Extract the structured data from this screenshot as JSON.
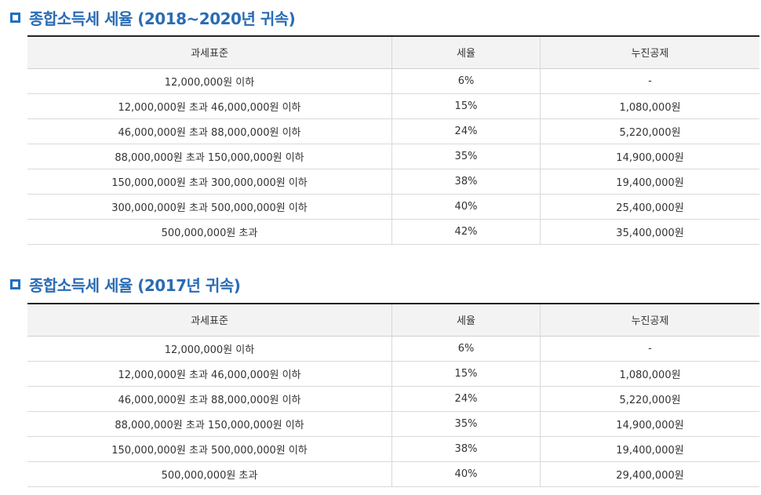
{
  "sections": [
    {
      "title": "종합소득세 세율 (2018~2020년 귀속)",
      "headers": [
        "과세표준",
        "세율",
        "누진공제"
      ],
      "rows": [
        [
          "12,000,000원 이하",
          "6%",
          "-"
        ],
        [
          "12,000,000원 초과 46,000,000원 이하",
          "15%",
          "1,080,000원"
        ],
        [
          "46,000,000원 초과 88,000,000원 이하",
          "24%",
          "5,220,000원"
        ],
        [
          "88,000,000원 초과 150,000,000원 이하",
          "35%",
          "14,900,000원"
        ],
        [
          "150,000,000원 초과 300,000,000원 이하",
          "38%",
          "19,400,000원"
        ],
        [
          "300,000,000원 초과 500,000,000원 이하",
          "40%",
          "25,400,000원"
        ],
        [
          "500,000,000원 초과",
          "42%",
          "35,400,000원"
        ]
      ]
    },
    {
      "title": "종합소득세 세율 (2017년 귀속)",
      "headers": [
        "과세표준",
        "세율",
        "누진공제"
      ],
      "rows": [
        [
          "12,000,000원 이하",
          "6%",
          "-"
        ],
        [
          "12,000,000원 초과 46,000,000원 이하",
          "15%",
          "1,080,000원"
        ],
        [
          "46,000,000원 초과 88,000,000원 이하",
          "24%",
          "5,220,000원"
        ],
        [
          "88,000,000원 초과 150,000,000원 이하",
          "35%",
          "14,900,000원"
        ],
        [
          "150,000,000원 초과 500,000,000원 이하",
          "38%",
          "19,400,000원"
        ],
        [
          "500,000,000원 초과",
          "40%",
          "29,400,000원"
        ]
      ]
    }
  ],
  "colors": {
    "heading_text": "#2a6cb4",
    "heading_icon": "#1f6fc2",
    "header_bg": "#f3f3f3",
    "top_border": "#222222",
    "row_border": "#d9d9d9"
  },
  "icons": {
    "heading": "square-bullet-icon"
  }
}
